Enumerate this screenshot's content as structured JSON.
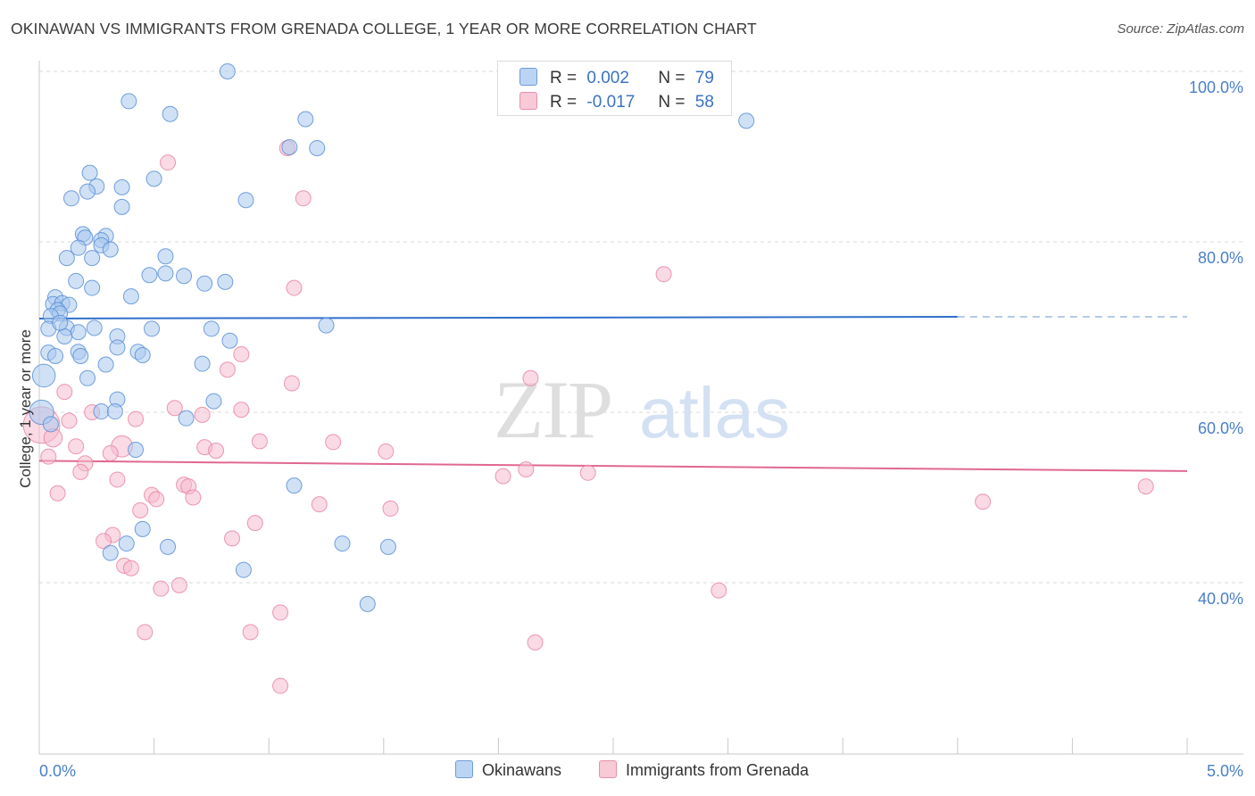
{
  "title": "OKINAWAN VS IMMIGRANTS FROM GRENADA COLLEGE, 1 YEAR OR MORE CORRELATION CHART",
  "source": "Source: ZipAtlas.com",
  "watermark": {
    "part1": "ZIP",
    "part2": "atlas"
  },
  "colors": {
    "blue_fill": "#a9c8ef",
    "blue_stroke": "#5b8fd6",
    "blue_line": "#2f6fcc",
    "pink_fill": "#f6bccd",
    "pink_stroke": "#e880a0",
    "pink_line": "#e06890",
    "accent_text": "#3a72c4",
    "grid": "#d9d9d9"
  },
  "legend": {
    "r_label": "R =",
    "n_label": "N =",
    "series": [
      {
        "r": "0.002",
        "n": "79"
      },
      {
        "r": "-0.017",
        "n": "58"
      }
    ]
  },
  "bottom_legend": {
    "okinawans": "Okinawans",
    "grenada": "Immigrants from Grenada"
  },
  "chart_data": {
    "type": "scatter",
    "title": "OKINAWAN VS IMMIGRANTS FROM GRENADA COLLEGE, 1 YEAR OR MORE CORRELATION CHART",
    "xlabel": "",
    "ylabel": "College, 1 year or more",
    "xlim": [
      0,
      5
    ],
    "ylim": [
      20,
      102
    ],
    "x_tick_labels": {
      "left": "0.0%",
      "right": "5.0%"
    },
    "y_ticks": [
      {
        "value": 100,
        "label": "100.0%"
      },
      {
        "value": 80,
        "label": "80.0%"
      },
      {
        "value": 60,
        "label": "60.0%"
      },
      {
        "value": 40,
        "label": "40.0%"
      }
    ],
    "grid": true,
    "legend_position": "top-center",
    "series": [
      {
        "name": "Okinawans",
        "r": 0.002,
        "n": 79,
        "trend": {
          "x": [
            0,
            4.0
          ],
          "y": [
            71.0,
            71.2
          ],
          "dashed_to_x": 5.0
        },
        "points": [
          {
            "x": 0.82,
            "y": 100.0,
            "s": 1
          },
          {
            "x": 0.39,
            "y": 96.5,
            "s": 1
          },
          {
            "x": 0.57,
            "y": 95.0,
            "s": 1
          },
          {
            "x": 1.16,
            "y": 94.4,
            "s": 1
          },
          {
            "x": 3.08,
            "y": 94.2,
            "s": 1
          },
          {
            "x": 1.09,
            "y": 91.1,
            "s": 1
          },
          {
            "x": 1.21,
            "y": 91.0,
            "s": 1
          },
          {
            "x": 0.22,
            "y": 88.1,
            "s": 1
          },
          {
            "x": 0.5,
            "y": 87.4,
            "s": 1
          },
          {
            "x": 0.25,
            "y": 86.5,
            "s": 1
          },
          {
            "x": 0.36,
            "y": 86.4,
            "s": 1
          },
          {
            "x": 0.21,
            "y": 85.9,
            "s": 1
          },
          {
            "x": 0.14,
            "y": 85.1,
            "s": 1
          },
          {
            "x": 0.9,
            "y": 84.9,
            "s": 1
          },
          {
            "x": 0.36,
            "y": 84.1,
            "s": 1
          },
          {
            "x": 0.19,
            "y": 80.9,
            "s": 1
          },
          {
            "x": 0.29,
            "y": 80.7,
            "s": 1
          },
          {
            "x": 0.2,
            "y": 80.5,
            "s": 1
          },
          {
            "x": 0.27,
            "y": 80.2,
            "s": 1
          },
          {
            "x": 0.27,
            "y": 79.6,
            "s": 1
          },
          {
            "x": 0.17,
            "y": 79.3,
            "s": 1
          },
          {
            "x": 0.31,
            "y": 79.1,
            "s": 1
          },
          {
            "x": 0.12,
            "y": 78.1,
            "s": 1
          },
          {
            "x": 0.23,
            "y": 78.1,
            "s": 1
          },
          {
            "x": 0.55,
            "y": 78.3,
            "s": 1
          },
          {
            "x": 0.48,
            "y": 76.1,
            "s": 1
          },
          {
            "x": 0.55,
            "y": 76.3,
            "s": 1
          },
          {
            "x": 0.16,
            "y": 75.4,
            "s": 1
          },
          {
            "x": 0.72,
            "y": 75.1,
            "s": 1
          },
          {
            "x": 0.81,
            "y": 75.3,
            "s": 1
          },
          {
            "x": 0.23,
            "y": 74.6,
            "s": 1
          },
          {
            "x": 0.4,
            "y": 73.6,
            "s": 1
          },
          {
            "x": 0.07,
            "y": 73.5,
            "s": 1
          },
          {
            "x": 0.06,
            "y": 72.7,
            "s": 1
          },
          {
            "x": 0.1,
            "y": 72.8,
            "s": 1
          },
          {
            "x": 0.13,
            "y": 72.6,
            "s": 1
          },
          {
            "x": 0.08,
            "y": 72.0,
            "s": 1
          },
          {
            "x": 0.09,
            "y": 71.6,
            "s": 1
          },
          {
            "x": 0.05,
            "y": 71.3,
            "s": 1
          },
          {
            "x": 1.25,
            "y": 70.2,
            "s": 1
          },
          {
            "x": 0.04,
            "y": 69.8,
            "s": 1
          },
          {
            "x": 0.12,
            "y": 69.9,
            "s": 1
          },
          {
            "x": 0.17,
            "y": 69.4,
            "s": 1
          },
          {
            "x": 0.24,
            "y": 69.9,
            "s": 1
          },
          {
            "x": 0.49,
            "y": 69.8,
            "s": 1
          },
          {
            "x": 0.75,
            "y": 69.8,
            "s": 1
          },
          {
            "x": 0.11,
            "y": 68.9,
            "s": 1
          },
          {
            "x": 0.34,
            "y": 68.9,
            "s": 1
          },
          {
            "x": 0.83,
            "y": 68.4,
            "s": 1
          },
          {
            "x": 0.34,
            "y": 67.6,
            "s": 1
          },
          {
            "x": 0.17,
            "y": 67.1,
            "s": 1
          },
          {
            "x": 0.43,
            "y": 67.1,
            "s": 1
          },
          {
            "x": 0.04,
            "y": 67.0,
            "s": 1
          },
          {
            "x": 0.07,
            "y": 66.6,
            "s": 1
          },
          {
            "x": 0.18,
            "y": 66.6,
            "s": 1
          },
          {
            "x": 0.45,
            "y": 66.7,
            "s": 1
          },
          {
            "x": 0.29,
            "y": 65.6,
            "s": 1
          },
          {
            "x": 0.71,
            "y": 65.7,
            "s": 1
          },
          {
            "x": 0.02,
            "y": 64.3,
            "s": 1.5
          },
          {
            "x": 0.21,
            "y": 64.0,
            "s": 1
          },
          {
            "x": 0.34,
            "y": 61.5,
            "s": 1
          },
          {
            "x": 0.76,
            "y": 61.3,
            "s": 1
          },
          {
            "x": 0.01,
            "y": 60.0,
            "s": 1.6
          },
          {
            "x": 0.27,
            "y": 60.1,
            "s": 1
          },
          {
            "x": 0.33,
            "y": 60.1,
            "s": 1
          },
          {
            "x": 0.64,
            "y": 59.3,
            "s": 1
          },
          {
            "x": 0.42,
            "y": 55.6,
            "s": 1
          },
          {
            "x": 1.11,
            "y": 51.4,
            "s": 1
          },
          {
            "x": 0.45,
            "y": 46.3,
            "s": 1
          },
          {
            "x": 0.38,
            "y": 44.6,
            "s": 1
          },
          {
            "x": 0.56,
            "y": 44.2,
            "s": 1
          },
          {
            "x": 1.32,
            "y": 44.6,
            "s": 1
          },
          {
            "x": 1.52,
            "y": 44.2,
            "s": 1
          },
          {
            "x": 0.31,
            "y": 43.5,
            "s": 1
          },
          {
            "x": 0.89,
            "y": 41.5,
            "s": 1
          },
          {
            "x": 1.43,
            "y": 37.5,
            "s": 1
          },
          {
            "x": 0.05,
            "y": 58.6,
            "s": 1
          },
          {
            "x": 0.09,
            "y": 70.5,
            "s": 1
          },
          {
            "x": 0.63,
            "y": 76.0,
            "s": 1
          }
        ]
      },
      {
        "name": "Immigrants from Grenada",
        "r": -0.017,
        "n": 58,
        "trend": {
          "x": [
            0,
            5.0
          ],
          "y": [
            54.3,
            53.1
          ]
        },
        "points": [
          {
            "x": 1.08,
            "y": 91.0,
            "s": 1
          },
          {
            "x": 0.56,
            "y": 89.3,
            "s": 1
          },
          {
            "x": 1.15,
            "y": 85.1,
            "s": 1
          },
          {
            "x": 2.72,
            "y": 76.2,
            "s": 1
          },
          {
            "x": 1.11,
            "y": 74.6,
            "s": 1
          },
          {
            "x": 0.88,
            "y": 66.8,
            "s": 1
          },
          {
            "x": 0.82,
            "y": 65.0,
            "s": 1
          },
          {
            "x": 2.14,
            "y": 64.0,
            "s": 1
          },
          {
            "x": 1.1,
            "y": 63.4,
            "s": 1
          },
          {
            "x": 0.11,
            "y": 62.4,
            "s": 1
          },
          {
            "x": 0.59,
            "y": 60.5,
            "s": 1
          },
          {
            "x": 0.88,
            "y": 60.3,
            "s": 1
          },
          {
            "x": 0.23,
            "y": 60.0,
            "s": 1
          },
          {
            "x": 0.71,
            "y": 59.7,
            "s": 1
          },
          {
            "x": 0.42,
            "y": 59.2,
            "s": 1
          },
          {
            "x": 0.13,
            "y": 59.0,
            "s": 1
          },
          {
            "x": 0.01,
            "y": 58.5,
            "s": 2.4
          },
          {
            "x": 0.06,
            "y": 57.0,
            "s": 1.2
          },
          {
            "x": 0.96,
            "y": 56.6,
            "s": 1
          },
          {
            "x": 1.28,
            "y": 56.5,
            "s": 1
          },
          {
            "x": 0.16,
            "y": 56.0,
            "s": 1
          },
          {
            "x": 0.36,
            "y": 56.0,
            "s": 1.4
          },
          {
            "x": 0.72,
            "y": 55.9,
            "s": 1
          },
          {
            "x": 0.31,
            "y": 55.2,
            "s": 1
          },
          {
            "x": 0.77,
            "y": 55.5,
            "s": 1
          },
          {
            "x": 1.51,
            "y": 55.4,
            "s": 1
          },
          {
            "x": 0.04,
            "y": 54.8,
            "s": 1
          },
          {
            "x": 0.2,
            "y": 54.0,
            "s": 1
          },
          {
            "x": 0.18,
            "y": 53.0,
            "s": 1
          },
          {
            "x": 2.12,
            "y": 53.3,
            "s": 1
          },
          {
            "x": 2.39,
            "y": 52.9,
            "s": 1
          },
          {
            "x": 2.02,
            "y": 52.5,
            "s": 1
          },
          {
            "x": 0.34,
            "y": 52.1,
            "s": 1
          },
          {
            "x": 0.63,
            "y": 51.5,
            "s": 1
          },
          {
            "x": 0.65,
            "y": 51.3,
            "s": 1
          },
          {
            "x": 4.82,
            "y": 51.3,
            "s": 1
          },
          {
            "x": 0.08,
            "y": 50.5,
            "s": 1
          },
          {
            "x": 0.49,
            "y": 50.3,
            "s": 1
          },
          {
            "x": 0.67,
            "y": 50.0,
            "s": 1
          },
          {
            "x": 0.51,
            "y": 49.8,
            "s": 1
          },
          {
            "x": 4.11,
            "y": 49.5,
            "s": 1
          },
          {
            "x": 1.22,
            "y": 49.2,
            "s": 1
          },
          {
            "x": 1.53,
            "y": 48.7,
            "s": 1
          },
          {
            "x": 0.44,
            "y": 48.5,
            "s": 1
          },
          {
            "x": 0.94,
            "y": 47.0,
            "s": 1
          },
          {
            "x": 0.32,
            "y": 45.6,
            "s": 1
          },
          {
            "x": 0.84,
            "y": 45.2,
            "s": 1
          },
          {
            "x": 0.28,
            "y": 44.9,
            "s": 1
          },
          {
            "x": 0.37,
            "y": 42.0,
            "s": 1
          },
          {
            "x": 0.4,
            "y": 41.7,
            "s": 1
          },
          {
            "x": 0.61,
            "y": 39.7,
            "s": 1
          },
          {
            "x": 0.53,
            "y": 39.3,
            "s": 1
          },
          {
            "x": 2.96,
            "y": 39.1,
            "s": 1
          },
          {
            "x": 1.05,
            "y": 36.5,
            "s": 1
          },
          {
            "x": 0.46,
            "y": 34.2,
            "s": 1
          },
          {
            "x": 0.92,
            "y": 34.2,
            "s": 1
          },
          {
            "x": 2.16,
            "y": 33.0,
            "s": 1
          },
          {
            "x": 1.05,
            "y": 27.9,
            "s": 1
          }
        ]
      }
    ]
  }
}
